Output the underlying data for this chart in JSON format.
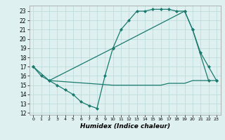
{
  "line1_x": [
    0,
    1,
    2,
    3,
    4,
    5,
    6,
    7,
    8,
    9,
    10,
    11,
    12,
    13,
    14,
    15,
    16,
    17,
    18,
    19,
    20,
    21,
    22,
    23
  ],
  "line1_y": [
    17,
    16,
    15.5,
    15,
    14.5,
    14,
    13.2,
    12.8,
    12.5,
    16,
    19,
    21,
    22,
    23,
    23,
    23.2,
    23.2,
    23.2,
    23,
    23,
    21,
    18.5,
    17,
    15.5
  ],
  "line2_x": [
    0,
    2,
    10,
    19,
    20,
    22,
    23
  ],
  "line2_y": [
    17,
    15.5,
    19,
    23,
    21,
    15.5,
    15.5
  ],
  "line3_x": [
    2,
    10,
    11,
    12,
    13,
    14,
    15,
    16,
    17,
    18,
    19,
    20,
    21,
    22
  ],
  "line3_y": [
    15.5,
    15,
    15,
    15,
    15,
    15,
    15,
    15,
    15.2,
    15.2,
    15.2,
    15.5,
    15.5,
    15.5
  ],
  "line_color": "#1a7a6e",
  "bg_color": "#dff0f0",
  "grid_color": "#b8d8d8",
  "xlabel": "Humidex (Indice chaleur)",
  "xlim": [
    -0.5,
    23.5
  ],
  "ylim": [
    11.8,
    23.6
  ],
  "yticks": [
    12,
    13,
    14,
    15,
    16,
    17,
    18,
    19,
    20,
    21,
    22,
    23
  ],
  "xticks": [
    0,
    1,
    2,
    3,
    4,
    5,
    6,
    7,
    8,
    9,
    10,
    11,
    12,
    13,
    14,
    15,
    16,
    17,
    18,
    19,
    20,
    21,
    22,
    23
  ],
  "marker": "D",
  "markersize": 2.0,
  "linewidth": 0.9,
  "tick_fontsize": 5.5,
  "xlabel_fontsize": 6.5
}
